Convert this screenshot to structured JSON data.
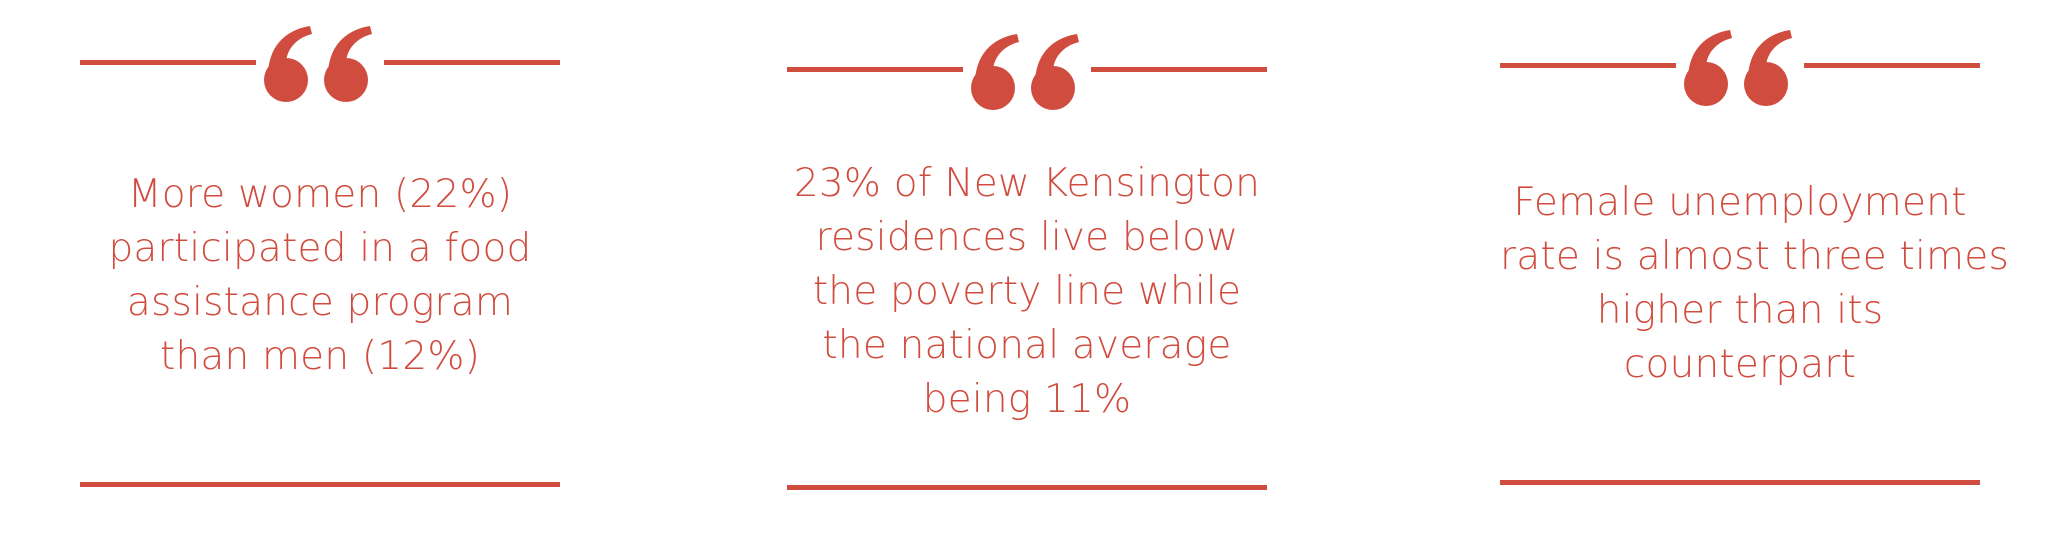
{
  "colors": {
    "accent": "#d04c3e",
    "background": "#ffffff"
  },
  "quotes": [
    {
      "icon": "quote-mark-icon",
      "lines": [
        "More women (22%)",
        "participated in a food",
        "assistance program",
        "than men (12%)"
      ]
    },
    {
      "icon": "quote-mark-icon",
      "lines": [
        "23% of New Kensington",
        "residences live below",
        "the poverty line while",
        "the national average",
        "being 11%"
      ]
    },
    {
      "icon": "quote-mark-icon",
      "lines": [
        "Female unemployment",
        "rate is almost three times",
        "higher than its",
        "counterpart"
      ]
    }
  ]
}
